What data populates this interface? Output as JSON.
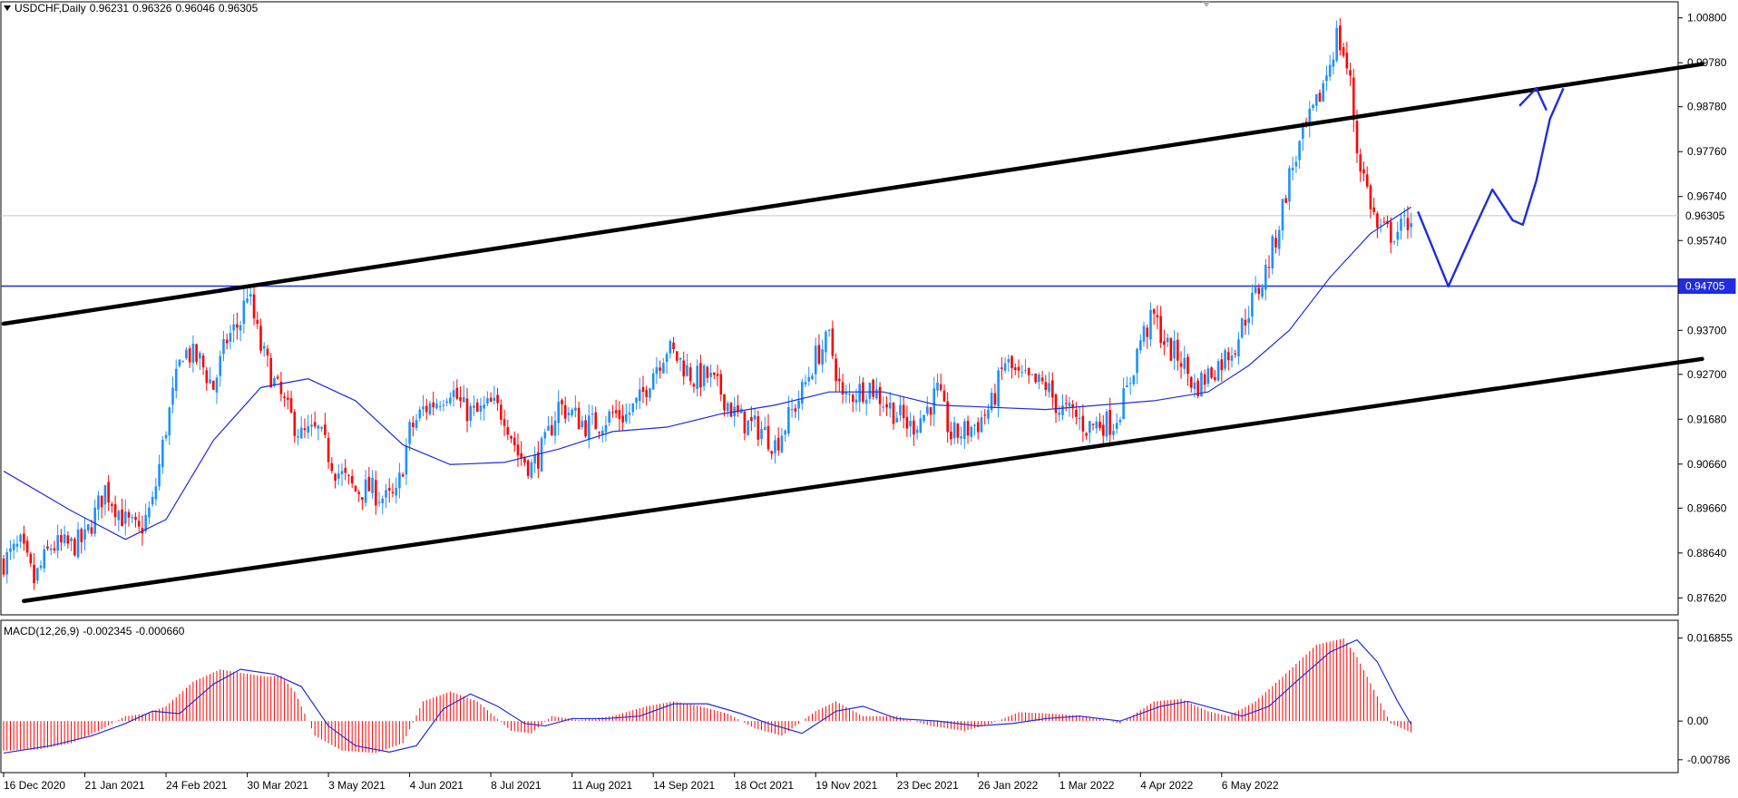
{
  "header": {
    "symbol": "USDCHF,Daily",
    "open": "0.96231",
    "high": "0.96326",
    "low": "0.96046",
    "close": "0.96305"
  },
  "macd_header": {
    "label": "MACD(12,26,9)",
    "main": "-0.002345",
    "signal": "-0.000660"
  },
  "colors": {
    "bull": "#1E90FF",
    "bear": "#FF0000",
    "ma": "#1F2CE0",
    "trendline": "#000000",
    "support": "#1F2CE0",
    "projection": "#1F2CE0",
    "macd_hist": "#FF0000",
    "macd_signal": "#1F2CE0"
  },
  "chart_data": [
    {
      "type": "candlestick",
      "symbol": "USDCHF",
      "timeframe": "Daily",
      "title": "USDCHF,Daily",
      "y_ticks": [
        "1.00800",
        "0.99780",
        "0.98780",
        "0.97760",
        "0.96740",
        "0.95740",
        "0.94705",
        "0.93700",
        "0.92700",
        "0.91680",
        "0.90660",
        "0.89660",
        "0.88640",
        "0.87620"
      ],
      "ylim": [
        0.874,
        1.01
      ],
      "current_price": "0.96305",
      "current_price_value": 0.96305,
      "support_level": "0.94705",
      "support_value": 0.94705,
      "x_ticks": [
        "16 Dec 2020",
        "21 Jan 2021",
        "24 Feb 2021",
        "30 Mar 2021",
        "3 May 2021",
        "4 Jun 2021",
        "8 Jul 2021",
        "11 Aug 2021",
        "14 Sep 2021",
        "18 Oct 2021",
        "19 Nov 2021",
        "23 Dec 2021",
        "26 Jan 2022",
        "1 Mar 2022",
        "4 Apr 2022",
        "6 May 2022"
      ],
      "bars_per_tick": 24,
      "close_path": [
        [
          0,
          0.8845
        ],
        [
          5,
          0.888
        ],
        [
          9,
          0.88
        ],
        [
          14,
          0.888
        ],
        [
          20,
          0.888
        ],
        [
          24,
          0.8895
        ],
        [
          30,
          0.901
        ],
        [
          36,
          0.8935
        ],
        [
          40,
          0.891
        ],
        [
          44,
          0.8975
        ],
        [
          48,
          0.915
        ],
        [
          53,
          0.9325
        ],
        [
          58,
          0.93
        ],
        [
          62,
          0.924
        ],
        [
          66,
          0.935
        ],
        [
          70,
          0.939
        ],
        [
          72,
          0.946
        ],
        [
          76,
          0.933
        ],
        [
          80,
          0.925
        ],
        [
          84,
          0.9185
        ],
        [
          88,
          0.913
        ],
        [
          93,
          0.914
        ],
        [
          98,
          0.9055
        ],
        [
          104,
          0.9005
        ],
        [
          108,
          0.901
        ],
        [
          113,
          0.8985
        ],
        [
          116,
          0.899
        ],
        [
          120,
          0.914
        ],
        [
          124,
          0.919
        ],
        [
          128,
          0.921
        ],
        [
          132,
          0.924
        ],
        [
          136,
          0.919
        ],
        [
          140,
          0.918
        ],
        [
          144,
          0.92
        ],
        [
          148,
          0.918
        ],
        [
          152,
          0.909
        ],
        [
          156,
          0.906
        ],
        [
          160,
          0.911
        ],
        [
          164,
          0.92
        ],
        [
          168,
          0.918
        ],
        [
          172,
          0.9155
        ],
        [
          176,
          0.916
        ],
        [
          180,
          0.918
        ],
        [
          184,
          0.9175
        ],
        [
          188,
          0.921
        ],
        [
          192,
          0.928
        ],
        [
          196,
          0.933
        ],
        [
          200,
          0.93
        ],
        [
          204,
          0.926
        ],
        [
          208,
          0.9265
        ],
        [
          212,
          0.923
        ],
        [
          216,
          0.918
        ],
        [
          220,
          0.9155
        ],
        [
          224,
          0.9145
        ],
        [
          228,
          0.911
        ],
        [
          232,
          0.917
        ],
        [
          236,
          0.923
        ],
        [
          240,
          0.931
        ],
        [
          244,
          0.935
        ],
        [
          248,
          0.921
        ],
        [
          252,
          0.923
        ],
        [
          256,
          0.9245
        ],
        [
          260,
          0.921
        ],
        [
          264,
          0.918
        ],
        [
          268,
          0.915
        ],
        [
          272,
          0.918
        ],
        [
          276,
          0.923
        ],
        [
          280,
          0.913
        ],
        [
          284,
          0.914
        ],
        [
          288,
          0.916
        ],
        [
          292,
          0.92
        ],
        [
          296,
          0.93
        ],
        [
          300,
          0.926
        ],
        [
          304,
          0.925
        ],
        [
          308,
          0.9245
        ],
        [
          312,
          0.919
        ],
        [
          316,
          0.918
        ],
        [
          320,
          0.915
        ],
        [
          324,
          0.916
        ],
        [
          328,
          0.916
        ],
        [
          332,
          0.923
        ],
        [
          336,
          0.935
        ],
        [
          340,
          0.94
        ],
        [
          344,
          0.933
        ],
        [
          348,
          0.9305
        ],
        [
          352,
          0.924
        ],
        [
          356,
          0.927
        ],
        [
          360,
          0.93
        ],
        [
          364,
          0.934
        ],
        [
          368,
          0.942
        ],
        [
          372,
          0.948
        ],
        [
          376,
          0.958
        ],
        [
          380,
          0.972
        ],
        [
          384,
          0.981
        ],
        [
          388,
          0.988
        ],
        [
          392,
          0.998
        ],
        [
          394,
          1.004
        ],
        [
          396,
          1.0
        ],
        [
          398,
          0.993
        ],
        [
          400,
          0.978
        ],
        [
          403,
          0.969
        ],
        [
          406,
          0.96
        ],
        [
          410,
          0.959
        ],
        [
          413,
          0.96
        ],
        [
          416,
          0.963
        ]
      ],
      "ma_path": [
        [
          0,
          0.905
        ],
        [
          20,
          0.896
        ],
        [
          36,
          0.8895
        ],
        [
          48,
          0.894
        ],
        [
          62,
          0.912
        ],
        [
          76,
          0.924
        ],
        [
          90,
          0.926
        ],
        [
          104,
          0.921
        ],
        [
          118,
          0.911
        ],
        [
          132,
          0.9065
        ],
        [
          148,
          0.907
        ],
        [
          164,
          0.91
        ],
        [
          180,
          0.914
        ],
        [
          196,
          0.915
        ],
        [
          212,
          0.918
        ],
        [
          228,
          0.92
        ],
        [
          244,
          0.923
        ],
        [
          260,
          0.923
        ],
        [
          276,
          0.92
        ],
        [
          292,
          0.9195
        ],
        [
          308,
          0.919
        ],
        [
          324,
          0.92
        ],
        [
          340,
          0.921
        ],
        [
          356,
          0.923
        ],
        [
          368,
          0.929
        ],
        [
          380,
          0.937
        ],
        [
          392,
          0.949
        ],
        [
          404,
          0.959
        ],
        [
          416,
          0.965
        ]
      ],
      "channel_upper": [
        [
          0,
          0.9385
        ],
        [
          502,
          0.9975
        ]
      ],
      "channel_lower": [
        [
          6,
          0.8755
        ],
        [
          502,
          0.9305
        ]
      ],
      "projection_path": [
        [
          418,
          0.964
        ],
        [
          427,
          0.947
        ],
        [
          434,
          0.959
        ],
        [
          440,
          0.969
        ],
        [
          446,
          0.962
        ],
        [
          449,
          0.961
        ],
        [
          453,
          0.971
        ],
        [
          457,
          0.985
        ],
        [
          461,
          0.992
        ]
      ],
      "projection_arrowhead": [
        [
          448,
          0.988
        ],
        [
          453,
          0.992
        ],
        [
          456,
          0.987
        ]
      ],
      "annotations": [
        "upward channel",
        "horizontal support line",
        "forecast path arrow"
      ]
    },
    {
      "type": "bar",
      "title": "MACD(12,26,9)",
      "main_value": "-0.002345",
      "signal_value": "-0.000660",
      "y_ticks": [
        "0.016855",
        "0.00",
        "-0.00786"
      ],
      "ylim": [
        -0.009,
        0.019
      ],
      "histogram_path": [
        [
          0,
          -0.006
        ],
        [
          10,
          -0.0058
        ],
        [
          20,
          -0.0045
        ],
        [
          28,
          -0.002
        ],
        [
          36,
          0.001
        ],
        [
          42,
          0.0015
        ],
        [
          48,
          0.003
        ],
        [
          56,
          0.008
        ],
        [
          64,
          0.0105
        ],
        [
          70,
          0.0098
        ],
        [
          78,
          0.009
        ],
        [
          82,
          0.0092
        ],
        [
          86,
          0.006
        ],
        [
          92,
          -0.003
        ],
        [
          100,
          -0.006
        ],
        [
          110,
          -0.0065
        ],
        [
          118,
          -0.0045
        ],
        [
          124,
          0.004
        ],
        [
          132,
          0.006
        ],
        [
          140,
          0.004
        ],
        [
          150,
          -0.002
        ],
        [
          156,
          -0.0025
        ],
        [
          162,
          0.001
        ],
        [
          170,
          0.0002
        ],
        [
          180,
          0.001
        ],
        [
          190,
          0.003
        ],
        [
          198,
          0.004
        ],
        [
          206,
          0.003
        ],
        [
          214,
          0.0015
        ],
        [
          222,
          -0.0015
        ],
        [
          230,
          -0.003
        ],
        [
          240,
          0.002
        ],
        [
          246,
          0.004
        ],
        [
          254,
          0.001
        ],
        [
          264,
          0.001
        ],
        [
          274,
          -0.001
        ],
        [
          284,
          -0.002
        ],
        [
          292,
          -0.0005
        ],
        [
          300,
          0.0018
        ],
        [
          310,
          0.0015
        ],
        [
          320,
          0.001
        ],
        [
          330,
          -0.0005
        ],
        [
          340,
          0.004
        ],
        [
          348,
          0.0045
        ],
        [
          356,
          0.002
        ],
        [
          362,
          0.001
        ],
        [
          370,
          0.004
        ],
        [
          378,
          0.009
        ],
        [
          388,
          0.0155
        ],
        [
          396,
          0.0168
        ],
        [
          400,
          0.013
        ],
        [
          406,
          0.005
        ],
        [
          410,
          -0.0005
        ],
        [
          416,
          -0.0023
        ]
      ],
      "signal_path": [
        [
          0,
          -0.0065
        ],
        [
          14,
          -0.005
        ],
        [
          26,
          -0.003
        ],
        [
          36,
          -0.0005
        ],
        [
          44,
          0.002
        ],
        [
          52,
          0.0015
        ],
        [
          62,
          0.0075
        ],
        [
          70,
          0.0105
        ],
        [
          80,
          0.0095
        ],
        [
          88,
          0.007
        ],
        [
          96,
          -0.001
        ],
        [
          104,
          -0.005
        ],
        [
          114,
          -0.0063
        ],
        [
          122,
          -0.005
        ],
        [
          130,
          0.0025
        ],
        [
          138,
          0.0055
        ],
        [
          146,
          0.003
        ],
        [
          154,
          -0.0005
        ],
        [
          160,
          -0.001
        ],
        [
          168,
          0.0005
        ],
        [
          178,
          0.0005
        ],
        [
          188,
          0.001
        ],
        [
          198,
          0.0035
        ],
        [
          208,
          0.0035
        ],
        [
          218,
          0.0015
        ],
        [
          226,
          -0.0005
        ],
        [
          236,
          -0.0025
        ],
        [
          246,
          0.002
        ],
        [
          254,
          0.003
        ],
        [
          264,
          0.0005
        ],
        [
          276,
          0.0
        ],
        [
          288,
          -0.001
        ],
        [
          298,
          -0.0005
        ],
        [
          308,
          0.0005
        ],
        [
          318,
          0.001
        ],
        [
          330,
          0.0
        ],
        [
          342,
          0.003
        ],
        [
          350,
          0.004
        ],
        [
          358,
          0.0025
        ],
        [
          366,
          0.001
        ],
        [
          374,
          0.003
        ],
        [
          382,
          0.008
        ],
        [
          392,
          0.014
        ],
        [
          400,
          0.0165
        ],
        [
          406,
          0.012
        ],
        [
          412,
          0.004
        ],
        [
          416,
          -0.0007
        ]
      ]
    }
  ]
}
